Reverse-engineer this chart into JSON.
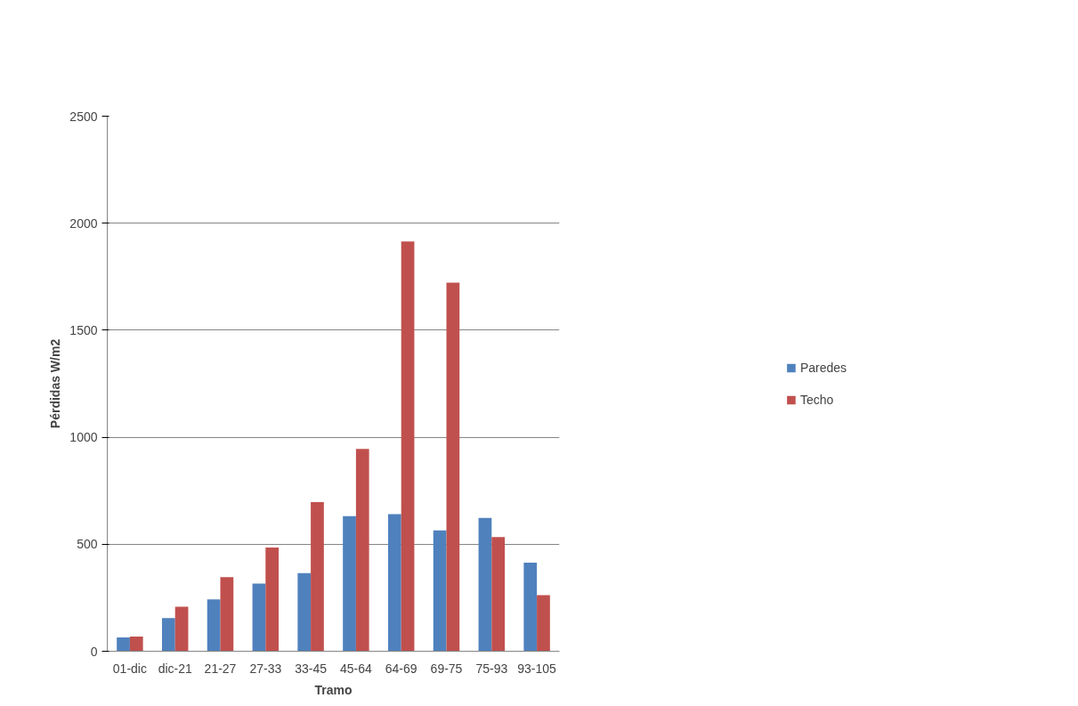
{
  "chart_data": {
    "type": "bar",
    "xlabel": "Tramo",
    "ylabel": "Pérdidas W/m2",
    "categories": [
      "01-dic",
      "dic-21",
      "21-27",
      "27-33",
      "33-45",
      "45-64",
      "64-69",
      "69-75",
      "75-93",
      "93-105"
    ],
    "series": [
      {
        "name": "Paredes",
        "color": "#4f81bd",
        "values": [
          64,
          155,
          242,
          316,
          365,
          631,
          641,
          565,
          623,
          414
        ]
      },
      {
        "name": "Techo",
        "color": "#c0504d",
        "values": [
          69,
          208,
          346,
          485,
          697,
          945,
          1915,
          1722,
          533,
          262
        ]
      }
    ],
    "ylim": [
      0,
      2500
    ],
    "yticks": [
      0,
      500,
      1000,
      1500,
      2000,
      2500
    ],
    "grid": "y",
    "legend": "right"
  }
}
